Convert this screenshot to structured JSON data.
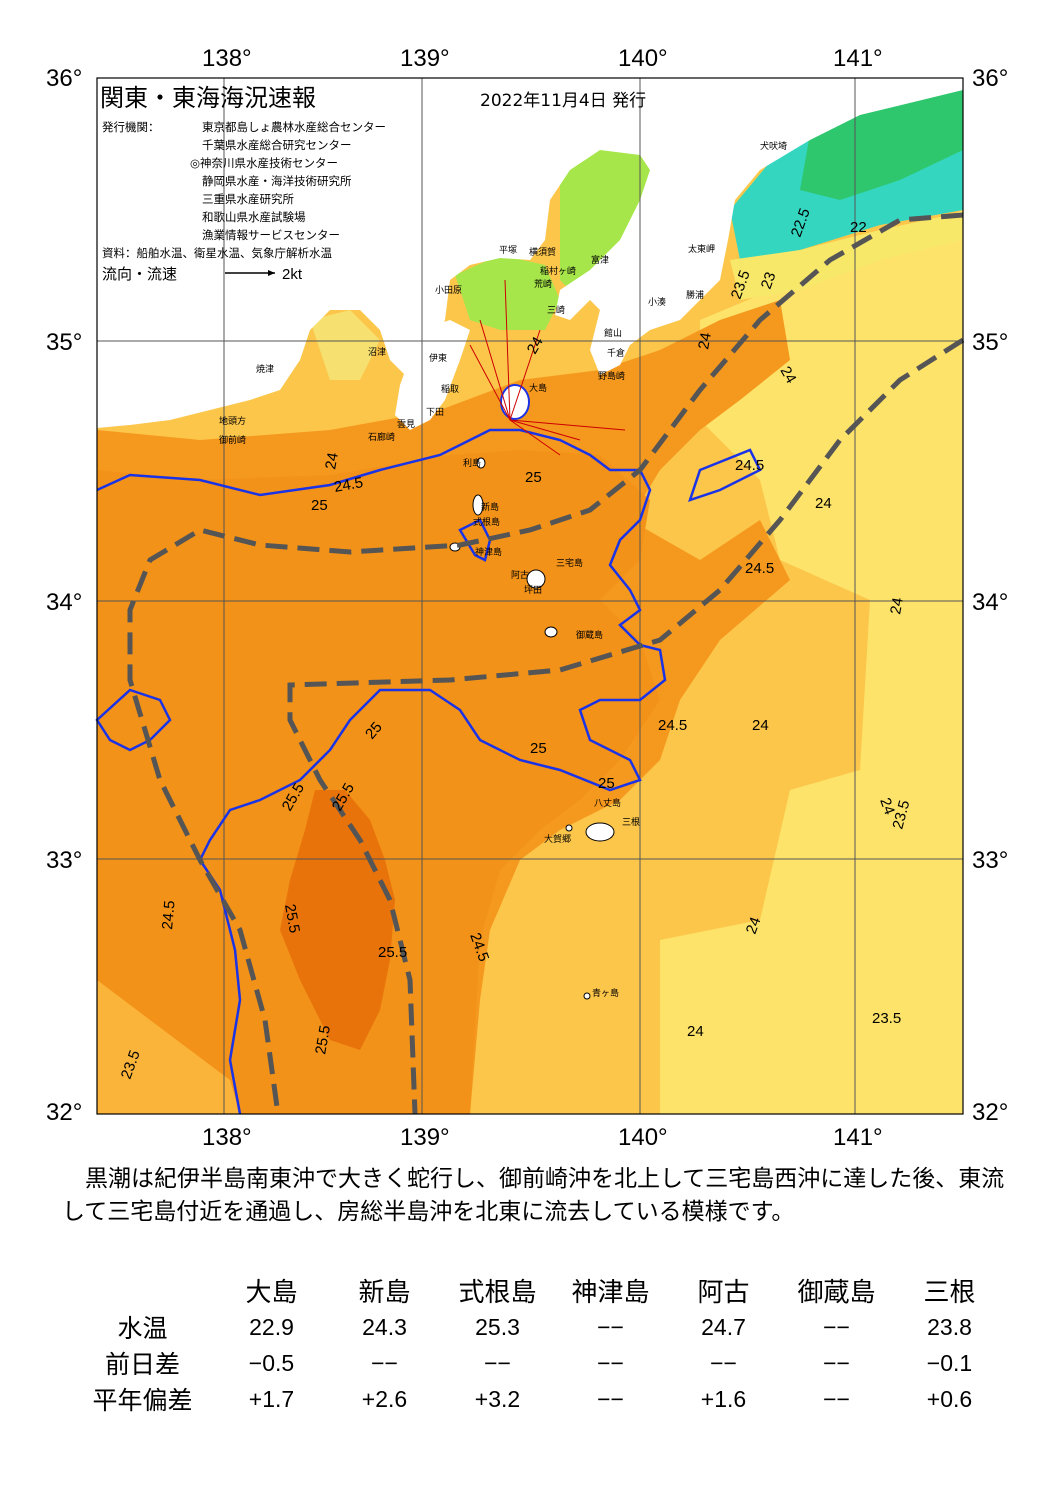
{
  "title": "関東・東海海況速報",
  "issue_date": "2022年11月4日 発行",
  "publisher_label": "発行機関：",
  "publishers": [
    "東京都島しょ農林水産総合センター",
    "千葉県水産総合研究センター",
    "◎神奈川県水産技術センター",
    "静岡県水産・海洋技術研究所",
    "三重県水産研究所",
    "和歌山県水産試験場",
    "漁業情報サービスセンター"
  ],
  "source_text": "資料：船舶水温、衛星水温、気象庁解析水温",
  "flow_label": "流向・流速",
  "flow_scale": "2kt",
  "axes": {
    "lon_labels": [
      "138°",
      "139°",
      "140°",
      "141°"
    ],
    "lat_labels": [
      "36°",
      "35°",
      "34°",
      "33°",
      "32°"
    ]
  },
  "places": [
    {
      "name": "犬吠埼"
    },
    {
      "name": "太東岬"
    },
    {
      "name": "勝浦"
    },
    {
      "name": "小湊"
    },
    {
      "name": "富津"
    },
    {
      "name": "横須賀"
    },
    {
      "name": "平塚"
    },
    {
      "name": "小田原"
    },
    {
      "name": "稲村ヶ崎"
    },
    {
      "name": "荒崎"
    },
    {
      "name": "三崎"
    },
    {
      "name": "館山"
    },
    {
      "name": "千倉"
    },
    {
      "name": "野島崎"
    },
    {
      "name": "沼津"
    },
    {
      "name": "伊東"
    },
    {
      "name": "焼津"
    },
    {
      "name": "稲取"
    },
    {
      "name": "下田"
    },
    {
      "name": "地頭方"
    },
    {
      "name": "御前崎"
    },
    {
      "name": "雲見"
    },
    {
      "name": "石廊崎"
    },
    {
      "name": "大島"
    },
    {
      "name": "利島"
    },
    {
      "name": "新島"
    },
    {
      "name": "式根島"
    },
    {
      "name": "神津島"
    },
    {
      "name": "三宅島"
    },
    {
      "name": "阿古"
    },
    {
      "name": "坪田"
    },
    {
      "name": "御蔵島"
    },
    {
      "name": "八丈島"
    },
    {
      "name": "三根"
    },
    {
      "name": "大賀郷"
    },
    {
      "name": "青ヶ島"
    }
  ],
  "contour_labels": [
    "22",
    "22.5",
    "23",
    "23.5",
    "24",
    "24.5",
    "25",
    "25.5"
  ],
  "description": "　黒潮は紀伊半島南東沖で大きく蛇行し、御前崎沖を北上して三宅島西沖に達した後、東流して三宅島付近を通過し、房総半島沖を北東に流去している模様です。",
  "table": {
    "columns": [
      "大島",
      "新島",
      "式根島",
      "神津島",
      "阿古",
      "御蔵島",
      "三根"
    ],
    "rows": [
      {
        "label": "水温",
        "values": [
          "22.9",
          "24.3",
          "25.3",
          "−−",
          "24.7",
          "−−",
          "23.8"
        ]
      },
      {
        "label": "前日差",
        "values": [
          "−0.5",
          "−−",
          "−−",
          "−−",
          "−−",
          "−−",
          "−0.1"
        ]
      },
      {
        "label": "平年偏差",
        "values": [
          "+1.7",
          "+2.6",
          "+3.2",
          "−−",
          "+1.6",
          "−−",
          "+0.6"
        ]
      }
    ]
  },
  "colors": {
    "sea_warm_deep": "#e8730a",
    "sea_warm": "#f5981e",
    "sea_mid": "#f9ac30",
    "sea_cool": "#fcc64a",
    "sea_cooler": "#fde36a",
    "sea_cold_green": "#2ec76e",
    "sea_cold_cyan": "#34d6c0",
    "land": "#ffffff",
    "kuroshio_line": "#1a33e6",
    "dash_line": "#555555"
  }
}
